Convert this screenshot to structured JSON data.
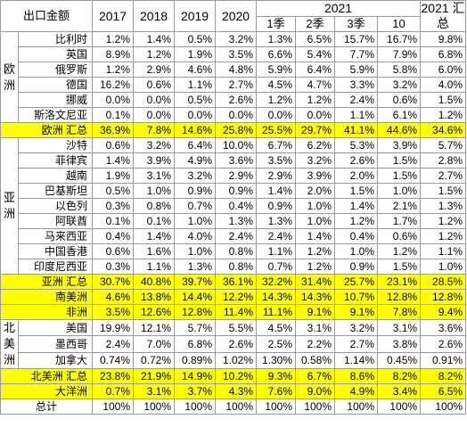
{
  "header": {
    "corner": "出口金额",
    "years": [
      "2017",
      "2018",
      "2019",
      "2020"
    ],
    "year2021": "2021",
    "sub": [
      "1季",
      "2季",
      "3季",
      "10"
    ],
    "summary": "2021 汇总"
  },
  "regions": {
    "europe": "欧洲",
    "asia": "亚洲",
    "north_america": "北美洲"
  },
  "europe_rows": [
    {
      "name": "比利时",
      "v": [
        "1.2%",
        "1.4%",
        "0.5%",
        "3.2%",
        "1.3%",
        "6.5%",
        "15.7%",
        "16.7%",
        "9.8%"
      ]
    },
    {
      "name": "英国",
      "v": [
        "8.9%",
        "1.2%",
        "1.9%",
        "3.5%",
        "6.6%",
        "5.4%",
        "7.7%",
        "7.9%",
        "6.8%"
      ]
    },
    {
      "name": "俄罗斯",
      "v": [
        "1.2%",
        "2.9%",
        "4.6%",
        "4.8%",
        "5.9%",
        "6.4%",
        "5.9%",
        "5.8%",
        "6.0%"
      ]
    },
    {
      "name": "德国",
      "v": [
        "16.2%",
        "0.6%",
        "1.1%",
        "2.7%",
        "4.5%",
        "4.7%",
        "3.3%",
        "3.2%",
        "4.0%"
      ]
    },
    {
      "name": "挪威",
      "v": [
        "0.0%",
        "0.0%",
        "0.5%",
        "2.6%",
        "1.2%",
        "1.2%",
        "2.4%",
        "0.6%",
        "1.5%"
      ]
    },
    {
      "name": "斯洛文尼亚",
      "v": [
        "0.1%",
        "0.0%",
        "0.0%",
        "0.0%",
        "0.0%",
        "0.0%",
        "1.1%",
        "6.1%",
        "1.2%"
      ]
    }
  ],
  "europe_total": {
    "name": "欧洲 汇总",
    "v": [
      "36.9%",
      "7.8%",
      "14.6%",
      "25.8%",
      "25.5%",
      "29.7%",
      "41.1%",
      "44.6%",
      "34.6%"
    ]
  },
  "asia_rows": [
    {
      "name": "沙特",
      "v": [
        "0.6%",
        "3.2%",
        "6.4%",
        "10.0%",
        "6.7%",
        "6.2%",
        "5.3%",
        "3.9%",
        "5.7%"
      ]
    },
    {
      "name": "菲律宾",
      "v": [
        "1.4%",
        "3.9%",
        "4.9%",
        "3.6%",
        "3.5%",
        "3.2%",
        "2.6%",
        "1.5%",
        "2.8%"
      ]
    },
    {
      "name": "越南",
      "v": [
        "1.9%",
        "3.1%",
        "3.2%",
        "2.9%",
        "2.9%",
        "3.9%",
        "2.0%",
        "1.5%",
        "2.7%"
      ]
    },
    {
      "name": "巴基斯坦",
      "v": [
        "0.5%",
        "1.0%",
        "0.9%",
        "0.9%",
        "1.4%",
        "2.0%",
        "1.5%",
        "1.0%",
        "1.5%"
      ]
    },
    {
      "name": "以色列",
      "v": [
        "0.3%",
        "0.8%",
        "0.7%",
        "0.4%",
        "0.9%",
        "1.0%",
        "1.4%",
        "2.1%",
        "1.3%"
      ]
    },
    {
      "name": "阿联酋",
      "v": [
        "0.1%",
        "0.1%",
        "1.0%",
        "1.3%",
        "1.3%",
        "1.0%",
        "1.2%",
        "1.7%",
        "1.2%"
      ]
    },
    {
      "name": "马来西亚",
      "v": [
        "0.4%",
        "1.4%",
        "4.0%",
        "2.4%",
        "2.4%",
        "1.4%",
        "0.4%",
        "0.6%",
        "1.2%"
      ]
    },
    {
      "name": "中国香港",
      "v": [
        "0.6%",
        "1.6%",
        "1.0%",
        "0.8%",
        "1.1%",
        "1.2%",
        "1.0%",
        "1.2%",
        "1.1%"
      ]
    },
    {
      "name": "印度尼西亚",
      "v": [
        "0.3%",
        "1.1%",
        "1.3%",
        "0.8%",
        "0.7%",
        "1.2%",
        "0.9%",
        "1.5%",
        "1.0%"
      ]
    }
  ],
  "asia_total": {
    "name": "亚洲 汇总",
    "v": [
      "30.7%",
      "40.8%",
      "39.7%",
      "36.1%",
      "32.2%",
      "31.4%",
      "25.7%",
      "23.1%",
      "28.5%"
    ]
  },
  "south_america_total": {
    "name": "南美洲",
    "v": [
      "4.6%",
      "13.8%",
      "14.4%",
      "12.2%",
      "14.3%",
      "14.3%",
      "10.7%",
      "12.8%",
      "12.8%"
    ]
  },
  "africa_total": {
    "name": "非洲",
    "v": [
      "3.5%",
      "12.6%",
      "12.8%",
      "11.4%",
      "11.1%",
      "9.1%",
      "9.1%",
      "7.8%",
      "9.4%"
    ]
  },
  "north_america_rows": [
    {
      "name": "美国",
      "v": [
        "19.9%",
        "12.1%",
        "5.7%",
        "5.5%",
        "4.5%",
        "3.1%",
        "3.2%",
        "3.1%",
        "3.6%"
      ]
    },
    {
      "name": "墨西哥",
      "v": [
        "2.4%",
        "7.0%",
        "6.8%",
        "2.6%",
        "2.5%",
        "2.2%",
        "2.7%",
        "3.8%",
        "2.6%"
      ]
    },
    {
      "name": "加拿大",
      "v": [
        "0.74%",
        "0.72%",
        "0.89%",
        "1.02%",
        "1.30%",
        "0.58%",
        "1.14%",
        "0.45%",
        "0.91%"
      ]
    }
  ],
  "north_america_total": {
    "name": "北美洲 汇总",
    "v": [
      "23.8%",
      "21.9%",
      "14.9%",
      "10.2%",
      "9.3%",
      "6.7%",
      "8.6%",
      "8.2%",
      "8.2%"
    ]
  },
  "oceania_total": {
    "name": "大洋洲",
    "v": [
      "0.7%",
      "3.1%",
      "3.7%",
      "4.3%",
      "7.6%",
      "9.0%",
      "4.9%",
      "3.4%",
      "6.5%"
    ]
  },
  "grand_total": {
    "name": "总计",
    "v": [
      "100%",
      "100%",
      "100%",
      "100%",
      "100%",
      "100%",
      "100%",
      "100%",
      "100%"
    ]
  },
  "colors": {
    "highlight": "#ffff00",
    "border": "#9a9a9a"
  }
}
